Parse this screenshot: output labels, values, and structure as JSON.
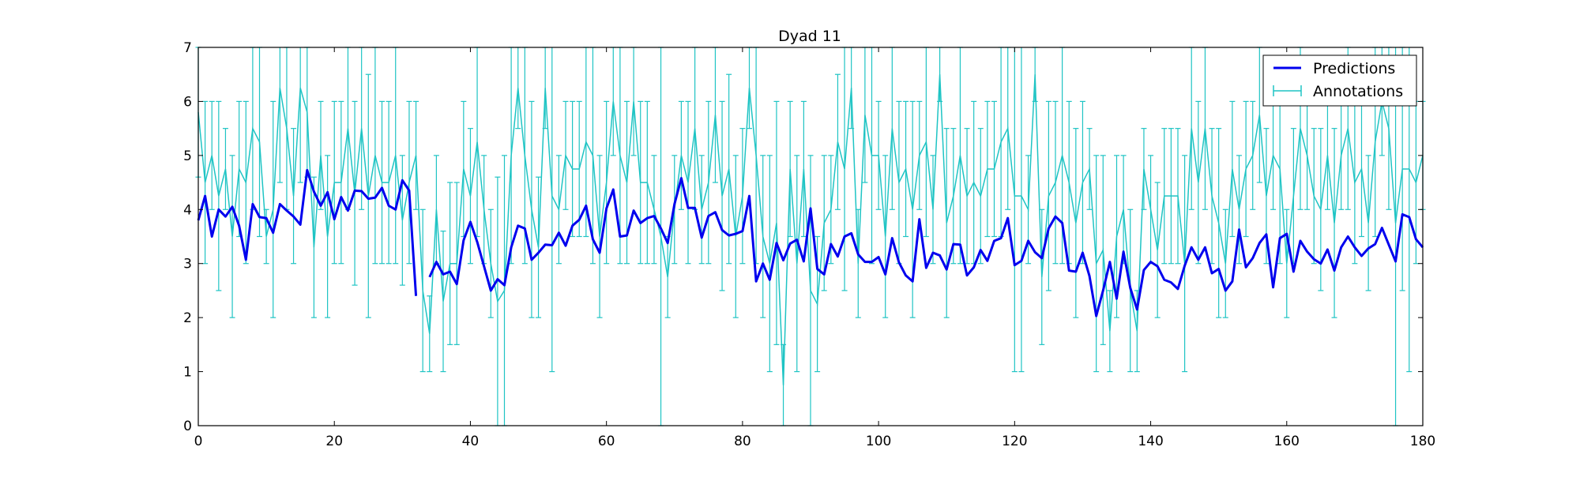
{
  "chart_data": {
    "type": "line",
    "title": "Dyad 11",
    "xlabel": "",
    "ylabel": "",
    "xlim": [
      0,
      180
    ],
    "ylim": [
      0,
      7
    ],
    "x_ticks": [
      "0",
      "20",
      "40",
      "60",
      "80",
      "100",
      "120",
      "140",
      "160",
      "180"
    ],
    "y_ticks": [
      "0",
      "1",
      "2",
      "3",
      "4",
      "5",
      "6",
      "7"
    ],
    "grid": false,
    "legend_position": "top-right",
    "legend": {
      "predictions_label": "Predictions",
      "annotations_label": "Annotations"
    },
    "colors": {
      "predictions": "#0000ee",
      "annotations": "#1fc4c4"
    },
    "series": [
      {
        "name": "Predictions",
        "x_start": 0,
        "values": [
          3.8,
          4.25,
          3.5,
          4.0,
          3.87,
          4.05,
          3.7,
          3.07,
          4.1,
          3.86,
          3.84,
          3.57,
          4.1,
          3.98,
          3.87,
          3.72,
          4.73,
          4.33,
          4.07,
          4.32,
          3.82,
          4.23,
          3.98,
          4.35,
          4.34,
          4.2,
          4.22,
          4.4,
          4.07,
          4.0,
          4.54,
          4.35,
          2.4,
          null,
          2.75,
          3.03,
          2.8,
          2.85,
          2.62,
          3.43,
          3.77,
          3.4,
          2.95,
          2.5,
          2.71,
          2.6,
          3.3,
          3.7,
          3.65,
          3.07,
          3.2,
          3.35,
          3.34,
          3.57,
          3.33,
          3.7,
          3.81,
          4.07,
          3.45,
          3.2,
          4.02,
          4.37,
          3.5,
          3.52,
          3.98,
          3.75,
          3.84,
          3.88,
          3.65,
          3.38,
          4.1,
          4.58,
          4.03,
          4.03,
          3.48,
          3.88,
          3.95,
          3.62,
          3.52,
          3.55,
          3.6,
          4.25,
          2.67,
          3.0,
          2.7,
          3.38,
          3.06,
          3.37,
          3.44,
          3.04,
          4.02,
          2.9,
          2.8,
          3.36,
          3.13,
          3.5,
          3.56,
          3.17,
          3.03,
          3.03,
          3.12,
          2.8,
          3.47,
          3.02,
          2.78,
          2.67,
          3.82,
          2.92,
          3.2,
          3.15,
          2.89,
          3.36,
          3.35,
          2.78,
          2.93,
          3.25,
          3.05,
          3.42,
          3.47,
          3.84,
          2.97,
          3.05,
          3.42,
          3.21,
          3.1,
          3.65,
          3.87,
          3.75,
          2.87,
          2.85,
          3.2,
          2.77,
          2.03,
          2.5,
          3.03,
          2.35,
          3.22,
          2.55,
          2.15,
          2.88,
          3.03,
          2.95,
          2.7,
          2.65,
          2.53,
          2.96,
          3.3,
          3.07,
          3.3,
          2.82,
          2.9,
          2.5,
          2.67,
          3.63,
          2.93,
          3.1,
          3.38,
          3.54,
          2.56,
          3.47,
          3.55,
          2.85,
          3.42,
          3.22,
          3.08,
          3.0,
          3.26,
          2.87,
          3.3,
          3.5,
          3.3,
          3.14,
          3.28,
          3.36,
          3.66,
          3.35,
          3.04,
          3.91,
          3.86,
          3.45,
          3.3
        ]
      },
      {
        "name": "Annotations",
        "x_start": 0,
        "values": [
          5.8,
          4.5,
          5.0,
          4.25,
          4.75,
          3.5,
          4.75,
          4.5,
          5.5,
          5.25,
          3.5,
          4.0,
          6.25,
          5.5,
          4.25,
          6.25,
          5.8,
          3.3,
          5.0,
          3.5,
          4.5,
          4.5,
          5.5,
          4.3,
          5.5,
          4.25,
          5.0,
          4.5,
          4.5,
          5.0,
          3.8,
          4.5,
          5.0,
          2.5,
          1.7,
          4.0,
          2.3,
          3.0,
          3.0,
          4.75,
          4.25,
          5.25,
          4.0,
          3.0,
          2.3,
          2.5,
          5.0,
          6.25,
          5.0,
          4.0,
          3.3,
          6.25,
          4.25,
          4.0,
          5.0,
          4.75,
          4.75,
          5.25,
          5.0,
          3.5,
          4.5,
          6.0,
          5.0,
          4.5,
          6.0,
          4.5,
          4.5,
          4.0,
          3.5,
          2.75,
          4.0,
          5.0,
          4.5,
          5.5,
          4.0,
          4.5,
          5.75,
          4.25,
          4.75,
          3.5,
          4.25,
          6.25,
          5.0,
          3.5,
          3.0,
          3.75,
          0.75,
          4.75,
          3.0,
          4.75,
          2.5,
          2.25,
          3.75,
          4.0,
          5.25,
          4.75,
          6.25,
          3.0,
          5.75,
          5.0,
          5.0,
          3.5,
          5.5,
          4.5,
          4.75,
          4.0,
          5.0,
          5.25,
          4.0,
          6.5,
          3.75,
          4.25,
          5.0,
          4.25,
          4.5,
          4.25,
          4.75,
          4.75,
          5.25,
          5.5,
          4.25,
          4.25,
          4.0,
          6.5,
          2.75,
          4.25,
          4.5,
          5.0,
          4.5,
          3.75,
          4.5,
          4.75,
          3.0,
          3.25,
          1.75,
          3.5,
          4.0,
          2.5,
          1.75,
          4.75,
          4.0,
          3.25,
          4.25,
          4.25,
          4.25,
          3.0,
          5.5,
          4.5,
          5.5,
          4.25,
          3.75,
          3.0,
          4.75,
          4.0,
          4.75,
          5.0,
          5.75,
          4.25,
          5.0,
          4.75,
          3.0,
          4.25,
          5.5,
          5.0,
          4.25,
          4.0,
          5.0,
          3.75,
          5.0,
          5.5,
          4.5,
          4.75,
          3.75,
          5.25,
          6.0,
          5.5,
          3.75,
          4.75,
          4.75,
          4.5,
          5.0
        ],
        "error": [
          1.2,
          1.5,
          1.0,
          1.75,
          0.75,
          1.5,
          1.25,
          1.5,
          1.5,
          1.75,
          0.5,
          2.0,
          1.75,
          1.5,
          1.25,
          1.75,
          1.2,
          1.3,
          1.0,
          1.5,
          1.5,
          1.5,
          1.5,
          1.7,
          1.5,
          2.25,
          2.0,
          1.5,
          1.5,
          2.0,
          1.2,
          1.5,
          1.0,
          1.5,
          0.7,
          1.0,
          1.3,
          1.5,
          1.5,
          1.25,
          1.25,
          1.75,
          1.0,
          1.0,
          2.3,
          2.5,
          2.0,
          0.75,
          2.0,
          2.0,
          1.3,
          0.75,
          3.25,
          1.0,
          1.0,
          1.25,
          1.25,
          1.75,
          2.0,
          1.5,
          1.5,
          1.0,
          2.0,
          1.5,
          1.0,
          1.5,
          1.5,
          1.0,
          3.5,
          0.75,
          1.0,
          1.0,
          1.5,
          1.5,
          1.0,
          1.5,
          1.25,
          1.75,
          1.75,
          1.5,
          1.25,
          0.75,
          2.0,
          1.5,
          2.0,
          2.25,
          0.75,
          1.25,
          2.0,
          1.25,
          2.5,
          1.25,
          1.25,
          1.0,
          1.25,
          2.25,
          0.75,
          1.0,
          1.25,
          2.0,
          1.0,
          1.5,
          1.5,
          1.5,
          1.25,
          2.0,
          1.0,
          1.75,
          1.0,
          0.5,
          1.75,
          1.25,
          2.0,
          1.25,
          1.5,
          1.25,
          1.25,
          1.25,
          1.75,
          1.5,
          3.25,
          3.25,
          1.0,
          0.5,
          1.25,
          1.75,
          1.5,
          2.0,
          1.5,
          1.75,
          1.5,
          0.75,
          2.0,
          1.75,
          0.75,
          1.5,
          1.0,
          1.5,
          0.75,
          0.75,
          1.0,
          1.25,
          1.25,
          1.25,
          1.25,
          2.0,
          1.5,
          1.5,
          1.5,
          1.25,
          1.75,
          1.0,
          1.25,
          1.0,
          1.25,
          1.0,
          1.25,
          1.25,
          1.0,
          1.75,
          1.0,
          1.25,
          1.5,
          1.0,
          1.25,
          1.5,
          1.0,
          1.75,
          1.0,
          1.5,
          1.5,
          1.25,
          1.25,
          1.75,
          1.0,
          1.5,
          3.75,
          2.25,
          3.75,
          1.5,
          1.0
        ]
      }
    ]
  }
}
